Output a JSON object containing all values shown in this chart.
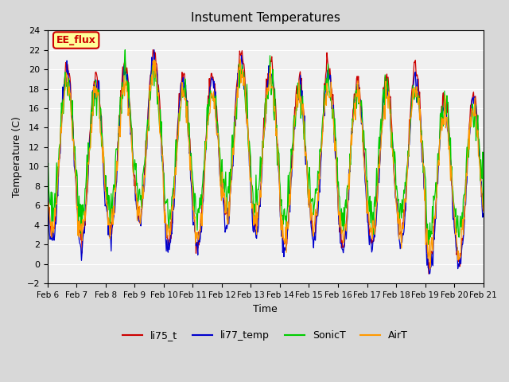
{
  "title": "Instument Temperatures",
  "xlabel": "Time",
  "ylabel": "Temperature (C)",
  "ylim": [
    -2,
    24
  ],
  "series_names": [
    "li75_t",
    "li77_temp",
    "SonicT",
    "AirT"
  ],
  "series_colors": [
    "#cc0000",
    "#0000cc",
    "#00cc00",
    "#ff9900"
  ],
  "annotation_text": "EE_flux",
  "annotation_color": "#cc0000",
  "annotation_bg": "#ffff99",
  "xtick_labels": [
    "Feb 6",
    "Feb 7",
    "Feb 8",
    "Feb 9",
    "Feb 10",
    "Feb 11",
    "Feb 12",
    "Feb 13",
    "Feb 14",
    "Feb 15",
    "Feb 16",
    "Feb 17",
    "Feb 18",
    "Feb 19",
    "Feb 20",
    "Feb 21"
  ],
  "background_color": "#d8d8d8",
  "plot_bg": "#f0f0f0",
  "grid_color": "#ffffff",
  "n_days": 15,
  "points_per_day": 48
}
